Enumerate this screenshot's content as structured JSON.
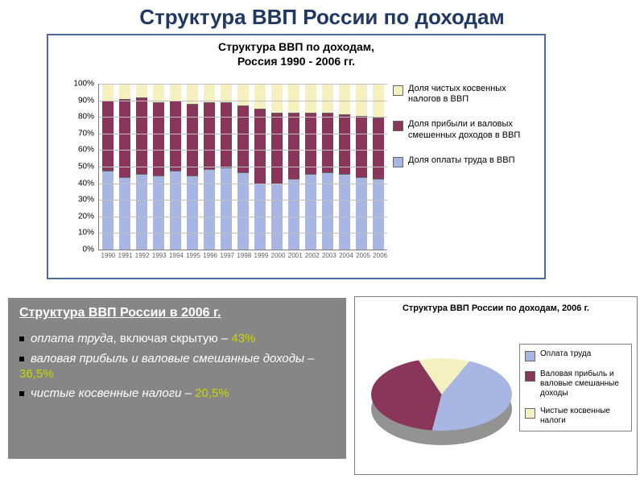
{
  "page": {
    "title": "Структура ВВП России по доходам"
  },
  "bar_chart": {
    "type": "stacked-bar",
    "title_l1": "Структура ВВП по доходам,",
    "title_l2": "Россия 1990 - 2006 гг.",
    "ylim": [
      0,
      100
    ],
    "ytick_step": 10,
    "ytick_suffix": "%",
    "years": [
      "1990",
      "1991",
      "1992",
      "1993",
      "1994",
      "1995",
      "1996",
      "1997",
      "1998",
      "1999",
      "2000",
      "2001",
      "2002",
      "2003",
      "2004",
      "2005",
      "2006"
    ],
    "series": [
      {
        "key": "labor",
        "color": "#a8b6e4",
        "label": "Доля оплаты труда в ВВП",
        "values": [
          48,
          44,
          46,
          45,
          48,
          45,
          49,
          50,
          47,
          40,
          40,
          43,
          46,
          47,
          46,
          44,
          43
        ]
      },
      {
        "key": "profit",
        "color": "#8a355a",
        "label": "Доля прибыли и валовых смешенных доходов в ВВП",
        "values": [
          42,
          47,
          46,
          44,
          42,
          43,
          40,
          39,
          40,
          45,
          43,
          40,
          37,
          36,
          36,
          37,
          37
        ]
      },
      {
        "key": "tax",
        "color": "#f4f0c0",
        "label": "Доля чистых косвенных налогов в ВВП",
        "values": [
          10,
          9,
          8,
          11,
          10,
          12,
          11,
          11,
          13,
          15,
          17,
          17,
          17,
          17,
          18,
          19,
          20
        ]
      }
    ],
    "grid_color": "#c0c0c0",
    "border_color": "#4a6da0",
    "label_fontsize": 10
  },
  "lower_left": {
    "title": "Структура ВВП России в 2006 г.",
    "items": [
      {
        "text_a": "оплата труда",
        "text_b": ", включая скрытую – ",
        "pct": "43%"
      },
      {
        "text_a": "валовая прибыль и валовые смешанные доходы – ",
        "text_b": "",
        "pct": "36,5%"
      },
      {
        "text_a": "чистые косвенные налоги",
        "text_b": " – ",
        "pct": "20,5%"
      }
    ],
    "bg": "#868686",
    "accent": "#c7d600"
  },
  "pie_chart": {
    "type": "pie-3d",
    "title": "Структура ВВП России по доходам, 2006 г.",
    "slices": [
      {
        "label": "Оплата труда",
        "value": 43.0,
        "color": "#a8b6e4"
      },
      {
        "label": "Валовая прибыль и валовые смешанные доходы",
        "value": 36.5,
        "color": "#8a355a"
      },
      {
        "label": "Чистые косвенные налоги",
        "value": 20.5,
        "color": "#f4f0c0"
      }
    ],
    "bg": "#ffffff",
    "border_color": "#808080"
  }
}
